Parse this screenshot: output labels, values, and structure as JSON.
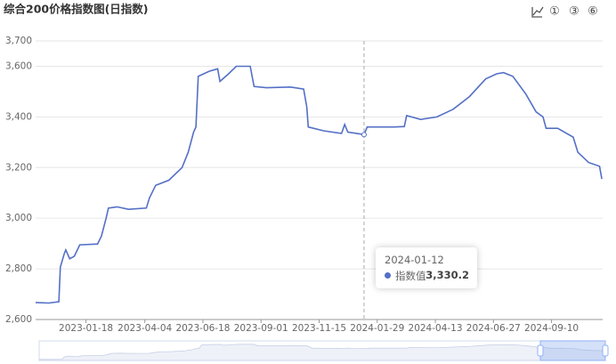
{
  "toolbar": [
    "①",
    "③",
    "⑥"
  ],
  "chart_data": {
    "type": "line",
    "title": "综合200价格指数图(日指数)",
    "x": [
      "2022-11-14",
      "2022-12-01",
      "2022-12-14",
      "2022-12-16",
      "2022-12-21",
      "2022-12-23",
      "2022-12-28",
      "2023-01-03",
      "2023-01-10",
      "2023-02-02",
      "2023-02-07",
      "2023-02-13",
      "2023-02-16",
      "2023-02-27",
      "2023-03-14",
      "2023-04-06",
      "2023-04-10",
      "2023-04-18",
      "2023-05-05",
      "2023-05-22",
      "2023-05-30",
      "2023-06-06",
      "2023-06-09",
      "2023-06-12",
      "2023-06-26",
      "2023-07-07",
      "2023-07-10",
      "2023-07-21",
      "2023-07-31",
      "2023-08-18",
      "2023-08-23",
      "2023-09-08",
      "2023-10-09",
      "2023-10-26",
      "2023-10-30",
      "2023-11-01",
      "2023-11-21",
      "2023-12-14",
      "2023-12-18",
      "2023-12-22",
      "2024-01-12",
      "2024-01-16",
      "2024-02-20",
      "2024-03-04",
      "2024-03-07",
      "2024-03-25",
      "2024-04-15",
      "2024-05-06",
      "2024-05-27",
      "2024-06-17",
      "2024-07-01",
      "2024-07-10",
      "2024-07-22",
      "2024-08-08",
      "2024-08-21",
      "2024-08-30",
      "2024-09-03",
      "2024-09-18",
      "2024-10-08",
      "2024-10-14",
      "2024-10-28",
      "2024-11-11",
      "2024-11-14"
    ],
    "series": [
      {
        "name": "指数值",
        "color": "#5470c6",
        "values": [
          2667,
          2665,
          2670,
          2807,
          2860,
          2875,
          2840,
          2850,
          2895,
          2898,
          2930,
          3000,
          3040,
          3045,
          3035,
          3040,
          3080,
          3130,
          3150,
          3200,
          3260,
          3340,
          3360,
          3560,
          3580,
          3590,
          3540,
          3570,
          3600,
          3600,
          3520,
          3515,
          3518,
          3510,
          3440,
          3360,
          3345,
          3335,
          3370,
          3340,
          3330.2,
          3360,
          3360,
          3362,
          3405,
          3390,
          3400,
          3430,
          3480,
          3550,
          3570,
          3575,
          3560,
          3490,
          3420,
          3400,
          3355,
          3355,
          3320,
          3260,
          3220,
          3205,
          3155
        ]
      }
    ],
    "xlim": [
      "2022-11-14",
      "2024-11-15"
    ],
    "xticks": [
      "2023-01-18",
      "2023-04-04",
      "2023-06-18",
      "2023-09-01",
      "2023-11-15",
      "2024-01-29",
      "2024-04-13",
      "2024-06-27",
      "2024-09-10"
    ],
    "ylim": [
      2600,
      3700
    ],
    "yticks": [
      {
        "value": 2600,
        "label": "2,600"
      },
      {
        "value": 2800,
        "label": "2,800"
      },
      {
        "value": 3000,
        "label": "3,000"
      },
      {
        "value": 3200,
        "label": "3,200"
      },
      {
        "value": 3400,
        "label": "3,400"
      },
      {
        "value": 3600,
        "label": "3,600"
      },
      {
        "value": 3700,
        "label": "3,700"
      }
    ],
    "grid": true,
    "tooltip": {
      "date": "2024-01-12",
      "value": 3330.2,
      "value_label": "3,330.2"
    }
  }
}
